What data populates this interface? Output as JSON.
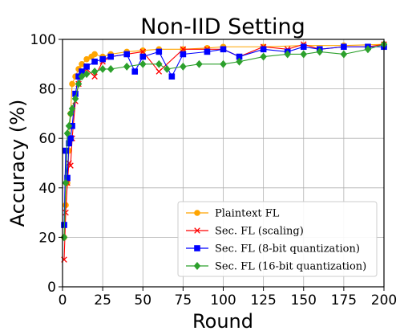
{
  "chart_data": {
    "type": "line",
    "title": "Non-IID Setting",
    "xlabel": "Round",
    "ylabel": "Accuracy (%)",
    "xlim": [
      0,
      200
    ],
    "ylim": [
      0,
      100
    ],
    "xticks": [
      0,
      25,
      50,
      75,
      100,
      125,
      150,
      175,
      200
    ],
    "yticks": [
      0,
      20,
      40,
      60,
      80,
      100
    ],
    "grid": true,
    "legend_position": "lower-right",
    "series": [
      {
        "name": "Plaintext FL",
        "color": "#ffa500",
        "marker": "circle",
        "x": [
          1,
          2,
          3,
          4,
          5,
          6,
          8,
          10,
          12,
          15,
          18,
          20,
          25,
          30,
          40,
          50,
          60,
          75,
          90,
          100,
          125,
          150,
          175,
          200
        ],
        "y": [
          20,
          33,
          42,
          55,
          70,
          82,
          85,
          88,
          90,
          92,
          93,
          94,
          93,
          94,
          95,
          95.5,
          96,
          96,
          96.5,
          97,
          97,
          97.5,
          97.5,
          98
        ]
      },
      {
        "name": "Sec. FL (scaling)",
        "color": "#ff0000",
        "marker": "x",
        "x": [
          1,
          2,
          3,
          4,
          5,
          6,
          8,
          10,
          12,
          15,
          20,
          25,
          30,
          40,
          50,
          60,
          75,
          90,
          100,
          110,
          125,
          140,
          150,
          160,
          175,
          190,
          200
        ],
        "y": [
          11,
          30,
          42,
          50,
          49,
          60,
          75,
          82,
          86,
          88,
          85,
          91,
          93,
          94,
          95,
          87,
          96,
          96,
          96,
          93,
          97,
          96,
          98,
          96,
          97,
          97,
          98
        ]
      },
      {
        "name": "Sec. FL (8-bit quantization)",
        "color": "#0000ff",
        "marker": "square",
        "x": [
          1,
          2,
          3,
          4,
          5,
          6,
          8,
          10,
          12,
          15,
          20,
          25,
          30,
          40,
          45,
          50,
          60,
          68,
          75,
          90,
          100,
          110,
          125,
          140,
          150,
          160,
          175,
          190,
          200
        ],
        "y": [
          25,
          55,
          44,
          58,
          60,
          65,
          78,
          85,
          87,
          89,
          91,
          92,
          93,
          94,
          87,
          93,
          95,
          85,
          94,
          95,
          96,
          93,
          96,
          95,
          97,
          96,
          97,
          97,
          97
        ]
      },
      {
        "name": "Sec. FL (16-bit quantization)",
        "color": "#2ca02c",
        "marker": "diamond",
        "x": [
          1,
          2,
          3,
          4,
          5,
          6,
          8,
          10,
          12,
          15,
          20,
          25,
          30,
          40,
          50,
          60,
          65,
          75,
          85,
          100,
          110,
          125,
          140,
          150,
          160,
          175,
          190,
          200
        ],
        "y": [
          20,
          42,
          62,
          65,
          70,
          72,
          76,
          82,
          85,
          86,
          87,
          88,
          88,
          89,
          90,
          90,
          88,
          89,
          90,
          90,
          91,
          93,
          94,
          94,
          95,
          94,
          96,
          98
        ]
      }
    ]
  }
}
